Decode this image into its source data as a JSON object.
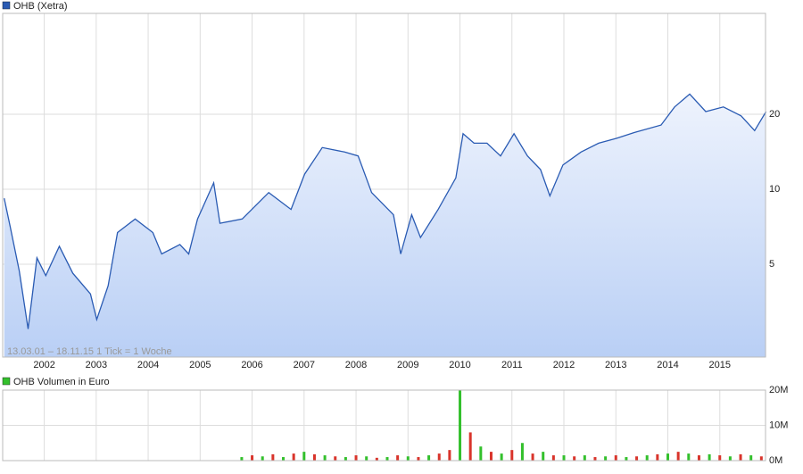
{
  "chart_data": [
    {
      "type": "line",
      "title": "OHB (Xetra)",
      "color": "#2a5bb3",
      "annotation": "13.03.01 – 18.11.15   1 Tick = 1 Woche",
      "x": [
        2001.23,
        2001.35,
        2001.52,
        2001.69,
        2001.86,
        2002.03,
        2002.29,
        2002.55,
        2002.89,
        2003.01,
        2003.23,
        2003.41,
        2003.75,
        2004.09,
        2004.26,
        2004.61,
        2004.78,
        2004.95,
        2005.26,
        2005.38,
        2005.81,
        2006.32,
        2006.75,
        2007.01,
        2007.35,
        2007.78,
        2008.04,
        2008.3,
        2008.72,
        2008.86,
        2009.07,
        2009.24,
        2009.58,
        2009.92,
        2010.06,
        2010.27,
        2010.52,
        2010.78,
        2011.04,
        2011.3,
        2011.55,
        2011.73,
        2011.98,
        2012.33,
        2012.67,
        2013.01,
        2013.36,
        2013.87,
        2014.13,
        2014.42,
        2014.73,
        2015.07,
        2015.41,
        2015.67,
        2015.89
      ],
      "values": [
        9.2,
        7.0,
        4.7,
        2.75,
        5.3,
        4.5,
        5.9,
        4.6,
        3.8,
        3.0,
        4.1,
        6.7,
        7.6,
        6.7,
        5.5,
        6.0,
        5.5,
        7.6,
        10.6,
        7.3,
        7.6,
        9.7,
        8.3,
        11.5,
        14.7,
        14.1,
        13.6,
        9.7,
        7.9,
        5.5,
        7.9,
        6.4,
        8.3,
        11.1,
        16.7,
        15.3,
        15.3,
        13.6,
        16.7,
        13.6,
        12.0,
        9.4,
        12.5,
        14.1,
        15.3,
        16.0,
        16.9,
        18.1,
        21.4,
        24.1,
        20.5,
        21.4,
        19.7,
        17.2,
        20.5
      ],
      "xlim": [
        2001.2,
        2015.88
      ],
      "xticks": [
        2002,
        2003,
        2004,
        2005,
        2006,
        2007,
        2008,
        2009,
        2010,
        2011,
        2012,
        2013,
        2014,
        2015
      ],
      "ylim": [
        2.12,
        50.8
      ],
      "yticks": [
        5,
        10,
        20
      ],
      "log_scale": true,
      "grid": true
    },
    {
      "type": "bar",
      "title": "OHB Volumen in Euro",
      "color": "#33a02c",
      "x": [
        2005.8,
        2006.0,
        2006.2,
        2006.4,
        2006.6,
        2006.8,
        2007.0,
        2007.2,
        2007.4,
        2007.6,
        2007.8,
        2008.0,
        2008.2,
        2008.4,
        2008.6,
        2008.8,
        2009.0,
        2009.2,
        2009.4,
        2009.6,
        2009.8,
        2010.0,
        2010.2,
        2010.4,
        2010.6,
        2010.8,
        2011.0,
        2011.2,
        2011.4,
        2011.6,
        2011.8,
        2012.0,
        2012.2,
        2012.4,
        2012.6,
        2012.8,
        2013.0,
        2013.2,
        2013.4,
        2013.6,
        2013.8,
        2014.0,
        2014.2,
        2014.4,
        2014.6,
        2014.8,
        2015.0,
        2015.2,
        2015.4,
        2015.6,
        2015.8
      ],
      "values": [
        1000000,
        1500000,
        1200000,
        1800000,
        1000000,
        2000000,
        2500000,
        1800000,
        1500000,
        1200000,
        1000000,
        1500000,
        1200000,
        800000,
        1000000,
        1500000,
        1200000,
        1000000,
        1500000,
        2000000,
        3000000,
        20000000,
        8000000,
        4000000,
        2500000,
        2000000,
        3000000,
        5000000,
        2000000,
        2500000,
        1500000,
        1500000,
        1200000,
        1500000,
        1000000,
        1200000,
        1500000,
        1000000,
        1200000,
        1500000,
        1800000,
        2000000,
        2500000,
        2000000,
        1500000,
        1800000,
        1500000,
        1200000,
        1800000,
        1500000,
        1200000
      ],
      "colors": [
        "#33c02c",
        "#d9342b",
        "#33c02c",
        "#d9342b",
        "#33c02c",
        "#d9342b",
        "#33c02c",
        "#d9342b",
        "#33c02c",
        "#d9342b",
        "#33c02c",
        "#d9342b",
        "#33c02c",
        "#d9342b",
        "#33c02c",
        "#d9342b",
        "#33c02c",
        "#d9342b",
        "#33c02c",
        "#d9342b",
        "#d9342b",
        "#33c02c",
        "#d9342b",
        "#33c02c",
        "#d9342b",
        "#33c02c",
        "#d9342b",
        "#33c02c",
        "#d9342b",
        "#33c02c",
        "#d9342b",
        "#33c02c",
        "#d9342b",
        "#33c02c",
        "#d9342b",
        "#33c02c",
        "#d9342b",
        "#33c02c",
        "#d9342b",
        "#33c02c",
        "#d9342b",
        "#33c02c",
        "#d9342b",
        "#33c02c",
        "#d9342b",
        "#33c02c",
        "#d9342b",
        "#33c02c",
        "#d9342b",
        "#33c02c",
        "#d9342b"
      ],
      "xlim": [
        2001.2,
        2015.88
      ],
      "ylim": [
        0,
        20000000
      ],
      "yticks": [
        {
          "value": 0,
          "label": "0M"
        },
        {
          "value": 10000000,
          "label": "10M"
        },
        {
          "value": 20000000,
          "label": "20M"
        }
      ],
      "grid": true
    }
  ]
}
